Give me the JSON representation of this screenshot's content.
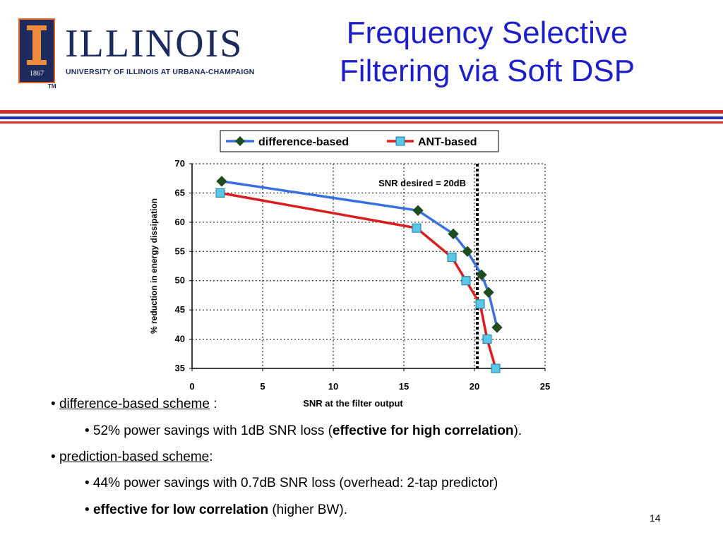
{
  "logo": {
    "year": "1867",
    "wordmark": "ILLINOIS",
    "subtitle": "UNIVERSITY OF ILLINOIS AT URBANA-CHAMPAIGN",
    "tm": "TM",
    "icon": "illinois-block-i-icon"
  },
  "title": {
    "line1": "Frequency Selective",
    "line2": "Filtering via Soft DSP"
  },
  "colors": {
    "title": "#1f1fc8",
    "rule_red": "#d42b2b",
    "rule_blue": "#1f2fc0",
    "series_difference": "#3a6fe0",
    "series_ant": "#d81e1e",
    "marker_difference": "#1e4d1e",
    "marker_ant": "#5bc6e6"
  },
  "chart_data": {
    "type": "line",
    "xlabel": "SNR at the filter output",
    "ylabel": "% reduction in energy dissipation",
    "xlim": [
      0,
      25
    ],
    "ylim": [
      35,
      70
    ],
    "xticks": [
      "0",
      "5",
      "10",
      "15",
      "20",
      "25"
    ],
    "yticks": [
      "35",
      "40",
      "45",
      "50",
      "55",
      "60",
      "65",
      "70"
    ],
    "grid": true,
    "legend_position": "top",
    "annotation": "SNR desired = 20dB",
    "vline_x": 20.2,
    "series": [
      {
        "name": "difference-based",
        "marker": "diamond",
        "x": [
          2.1,
          16.0,
          18.5,
          19.5,
          20.5,
          21.0,
          21.6
        ],
        "y": [
          67,
          62,
          58,
          55,
          51,
          48,
          42
        ]
      },
      {
        "name": "ANT-based",
        "marker": "square",
        "x": [
          2.0,
          15.9,
          18.4,
          19.4,
          20.4,
          20.9,
          21.5
        ],
        "y": [
          65,
          59,
          54,
          50,
          46,
          40,
          35
        ]
      }
    ]
  },
  "bullets": {
    "b1_prefix": "• ",
    "b1_link": "difference-based scheme",
    "b1_suffix": " :",
    "b1a_prefix": "• 52% power savings with 1dB SNR loss (",
    "b1a_bold": "effective for high correlation",
    "b1a_suffix": ").",
    "b2_prefix": "• ",
    "b2_link": "prediction-based scheme",
    "b2_suffix": ":",
    "b2a": "• 44% power savings with 0.7dB SNR loss (overhead: 2-tap predictor)",
    "b2b_prefix": "• ",
    "b2b_bold": "effective for low correlation",
    "b2b_suffix": " (higher BW)."
  },
  "page_number": "14"
}
